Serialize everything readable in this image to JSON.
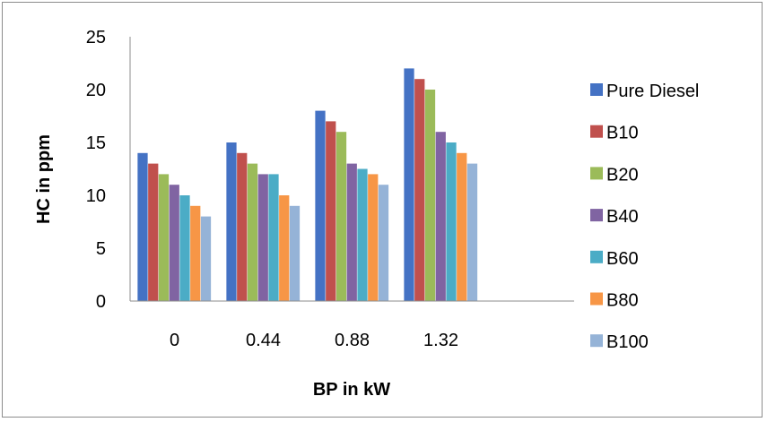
{
  "chart_data": {
    "type": "bar",
    "title": "",
    "xlabel": "BP in kW",
    "ylabel": "HC in ppm",
    "categories": [
      "0",
      "0.44",
      "0.88",
      "1.32"
    ],
    "ylim": [
      0,
      25
    ],
    "yticks": [
      "0",
      "5",
      "10",
      "15",
      "20",
      "25"
    ],
    "grid": false,
    "legend_position": "right",
    "series": [
      {
        "name": "Pure Diesel",
        "color": "#4472C4",
        "values": [
          14,
          15,
          18,
          22
        ]
      },
      {
        "name": "B10",
        "color": "#C0504D",
        "values": [
          13,
          14,
          17,
          21
        ]
      },
      {
        "name": "B20",
        "color": "#9BBB59",
        "values": [
          12,
          13,
          16,
          20
        ]
      },
      {
        "name": "B40",
        "color": "#8064A2",
        "values": [
          11,
          12,
          13,
          16
        ]
      },
      {
        "name": "B60",
        "color": "#4BACC6",
        "values": [
          10,
          12,
          12.5,
          15
        ]
      },
      {
        "name": "B80",
        "color": "#F79646",
        "values": [
          9,
          10,
          12,
          14
        ]
      },
      {
        "name": "B100",
        "color": "#95B3D7",
        "values": [
          8,
          9,
          11,
          13
        ]
      }
    ]
  }
}
